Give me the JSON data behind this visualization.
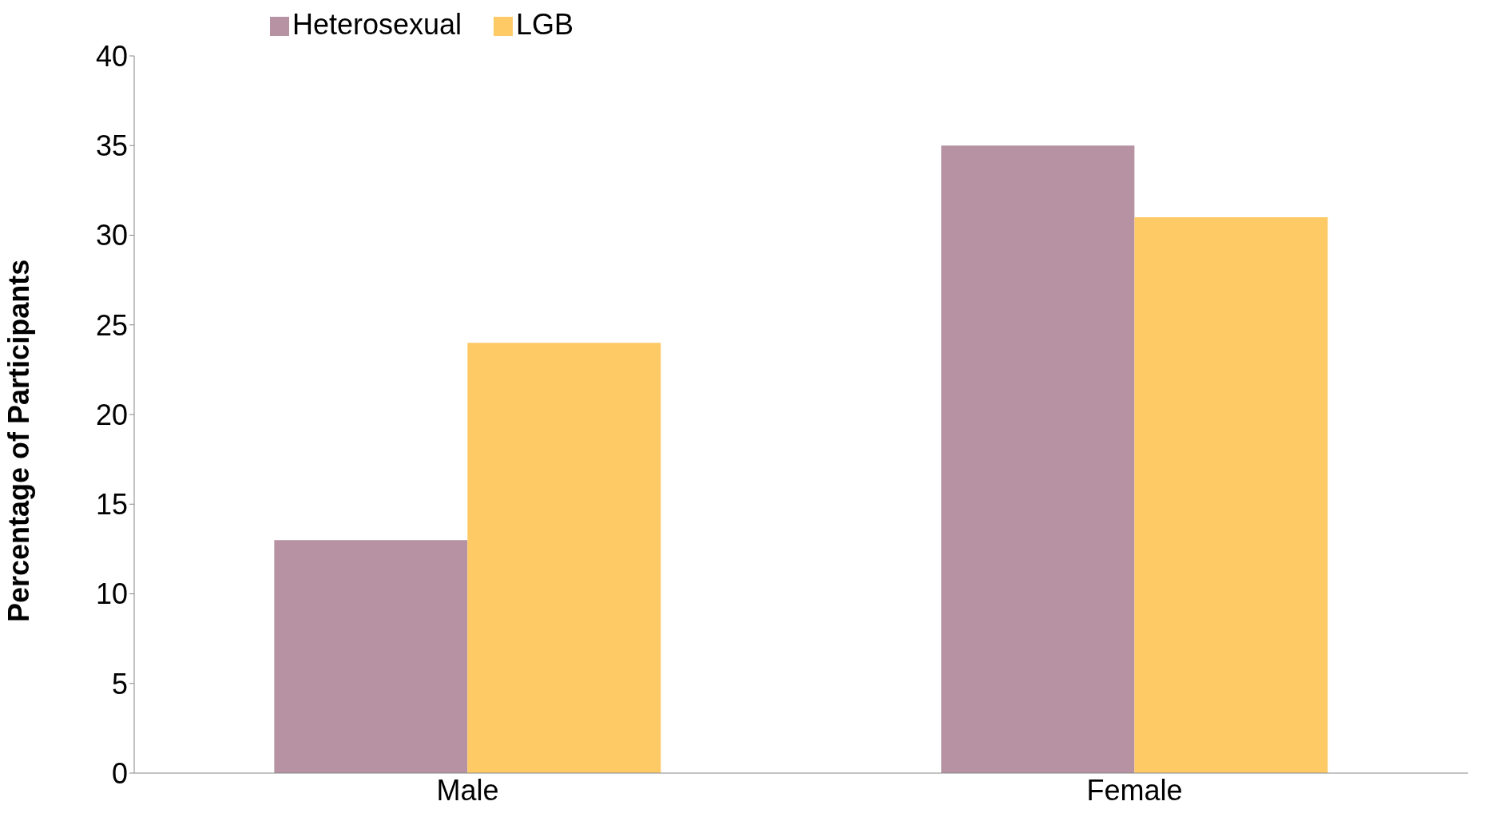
{
  "chart_data": {
    "type": "bar",
    "ylabel": "Percentage of Participants",
    "categories": [
      "Male",
      "Female"
    ],
    "series": [
      {
        "name": "Heterosexual",
        "color": "#b692a2",
        "values": [
          13,
          35
        ]
      },
      {
        "name": "LGB",
        "color": "#fdca66",
        "values": [
          24,
          31
        ]
      }
    ],
    "ylim": [
      0,
      40
    ],
    "yticks": [
      0,
      5,
      10,
      15,
      20,
      25,
      30,
      35,
      40
    ],
    "grid": false,
    "legend": "top"
  }
}
